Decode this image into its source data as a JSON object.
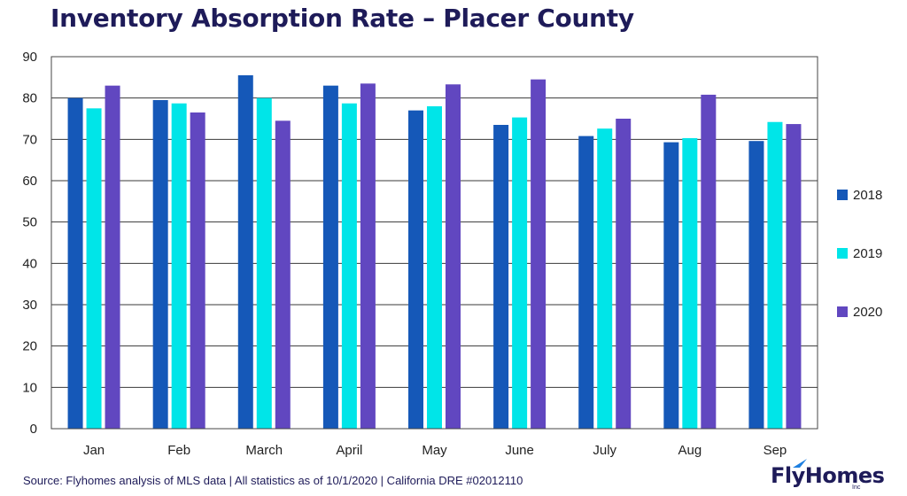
{
  "title": "Inventory Absorption Rate – Placer County",
  "footer": "Source: Flyhomes analysis of MLS data | All statistics as of 10/1/2020 | California DRE #02012110",
  "brand": {
    "name": "FlyHomes",
    "suffix": "Inc"
  },
  "colors": {
    "s2018": "#1558b8",
    "s2019": "#00e5e8",
    "s2020": "#6147c0",
    "title": "#1e1b59"
  },
  "chart_data": {
    "type": "bar",
    "title": "Inventory Absorption Rate – Placer County",
    "categories": [
      "Jan",
      "Feb",
      "March",
      "April",
      "May",
      "June",
      "July",
      "Aug",
      "Sep"
    ],
    "series": [
      {
        "name": "2018",
        "values": [
          80,
          79.5,
          85.5,
          83,
          77,
          73.5,
          70.8,
          69.3,
          69.6
        ]
      },
      {
        "name": "2019",
        "values": [
          77.5,
          78.7,
          80,
          78.7,
          78,
          75.3,
          72.6,
          70.3,
          74.2
        ]
      },
      {
        "name": "2020",
        "values": [
          83,
          76.5,
          74.5,
          83.5,
          83.3,
          84.5,
          75,
          80.8,
          73.7
        ]
      }
    ],
    "ylim": [
      0,
      90
    ],
    "yticks": [
      0,
      10,
      20,
      30,
      40,
      50,
      60,
      70,
      80,
      90
    ],
    "grid": true,
    "legend": "right"
  }
}
